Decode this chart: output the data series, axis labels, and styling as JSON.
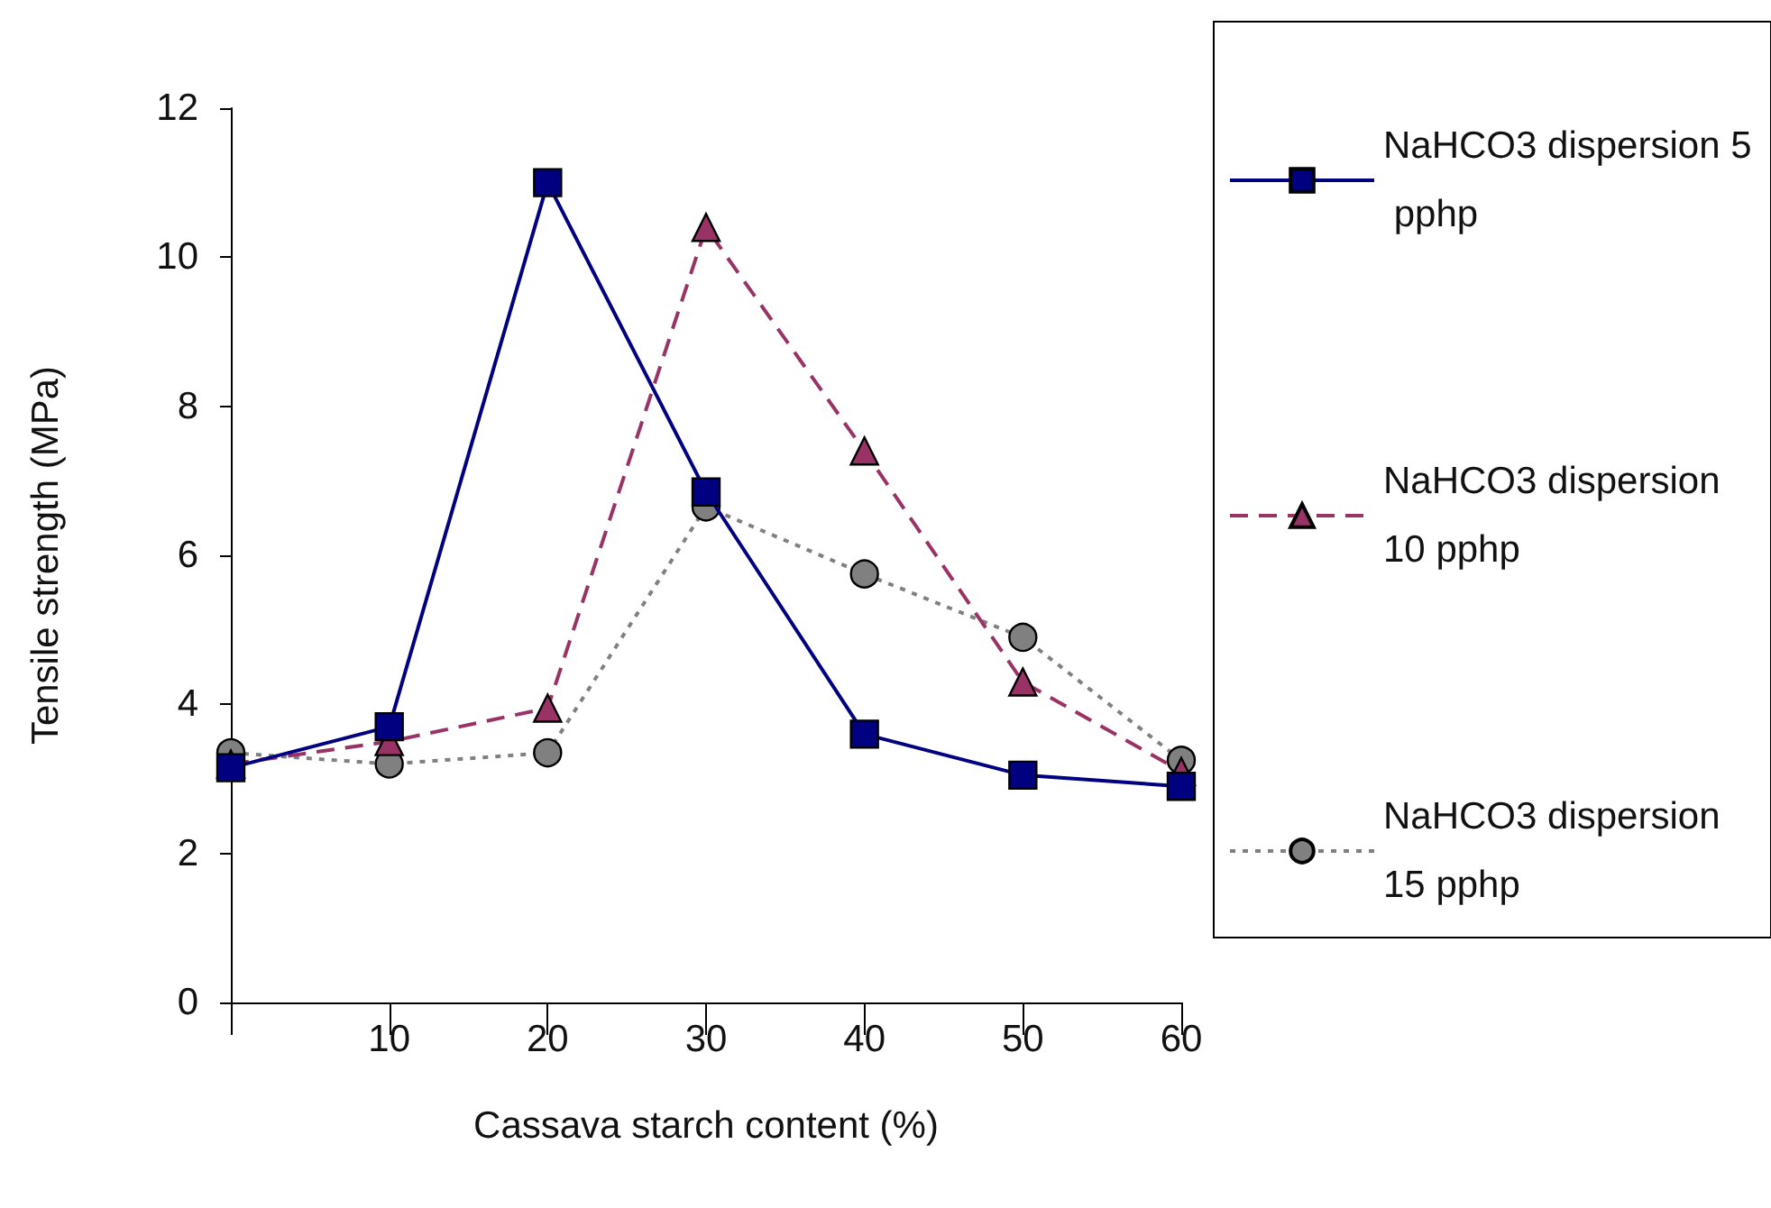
{
  "chart_data": {
    "type": "line",
    "xlabel": "Cassava starch content (%)",
    "ylabel": "Tensile strength (MPa)",
    "categories": [
      null,
      "10",
      "20",
      "30",
      "40",
      "50",
      "60"
    ],
    "series": [
      {
        "name": "NaHCO3 dispersion 5 pphp",
        "color": "#000080",
        "marker": "square",
        "line_style": "solid",
        "values": [
          3.15,
          3.7,
          11.0,
          6.85,
          3.6,
          3.05,
          2.9
        ]
      },
      {
        "name": "NaHCO3 dispersion 10 pphp",
        "color": "#993366",
        "marker": "triangle",
        "line_style": "dashed",
        "values": [
          3.2,
          3.5,
          3.95,
          10.4,
          7.4,
          4.3,
          3.1
        ]
      },
      {
        "name": "NaHCO3 dispersion 15 pphp",
        "color": "#808080",
        "marker": "circle",
        "line_style": "dotted",
        "values": [
          3.35,
          3.2,
          3.35,
          6.65,
          5.75,
          4.9,
          3.25
        ]
      }
    ],
    "ylim": [
      0,
      12
    ],
    "yticks": [
      0,
      2,
      4,
      6,
      8,
      10,
      12
    ],
    "grid": false,
    "legend": "right"
  }
}
